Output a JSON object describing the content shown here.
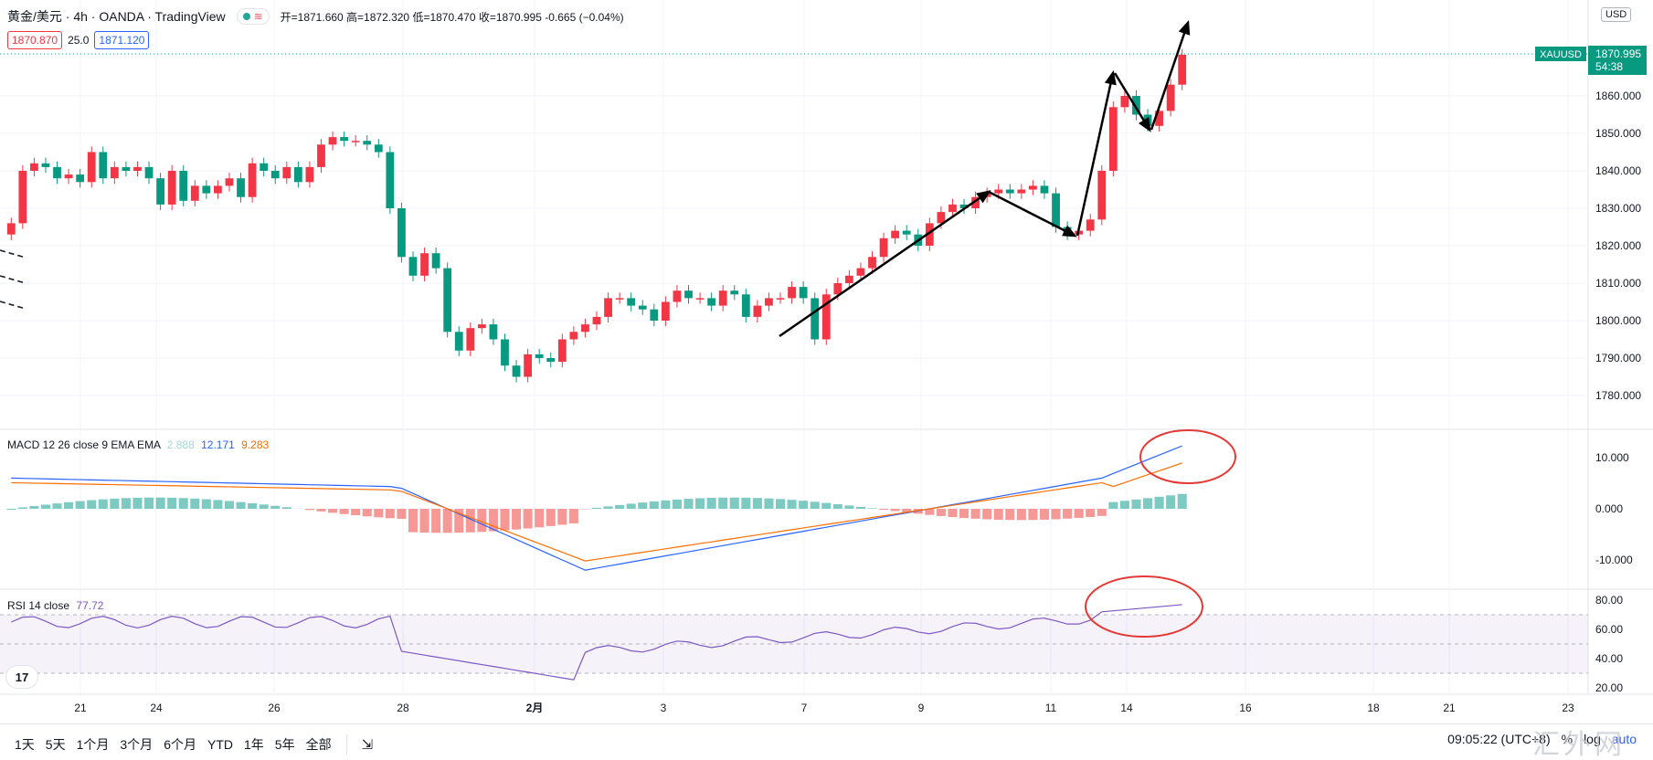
{
  "header": {
    "symbol": "黄金/美元 · 4h · OANDA · TradingView",
    "wave_icon": "≋",
    "ohlc_text": "开=1871.660 高=1872.320 低=1870.470 收=1870.995 -0.665 (−0.04%)",
    "sell_price": "1870.870",
    "spread": "25.0",
    "buy_price": "1871.120",
    "currency_button": "USD"
  },
  "price_axis": {
    "ticks": [
      "1860.000",
      "1850.000",
      "1840.000",
      "1830.000",
      "1820.000",
      "1810.000",
      "1800.000",
      "1790.000",
      "1780.000"
    ],
    "symbol_tag": "XAUUSD",
    "last_price": "1870.995",
    "countdown": "54:38"
  },
  "time_axis": {
    "ticks": [
      "21",
      "24",
      "26",
      "28",
      "2月",
      "3",
      "7",
      "9",
      "11",
      "14",
      "16",
      "18",
      "21",
      "23"
    ]
  },
  "macd": {
    "label": "MACD 12 26 close 9 EMA EMA",
    "hist_value": "2.888",
    "macd_value": "12.171",
    "signal_value": "9.283",
    "ticks": [
      "10.000",
      "0.000",
      "-10.000"
    ]
  },
  "rsi": {
    "label": "RSI 14 close",
    "value": "77.72",
    "ticks": [
      "80.00",
      "60.00",
      "40.00",
      "20.00"
    ]
  },
  "colors": {
    "up": "#f23645",
    "down": "#089981",
    "macd_line": "#2962ff",
    "signal_line": "#ff6d00",
    "rsi_line": "#7e57c2",
    "annotation_circle": "#e53935"
  },
  "bottom_bar": {
    "timeframes": [
      "1天",
      "5天",
      "1个月",
      "3个月",
      "6个月",
      "YTD",
      "1年",
      "5年",
      "全部"
    ],
    "goto_icon": "⇲",
    "clock": "09:05:22 (UTC+8)",
    "percent": "%",
    "log": "log",
    "auto": "auto"
  },
  "watermark": "汇外网",
  "logo_text": "17"
}
